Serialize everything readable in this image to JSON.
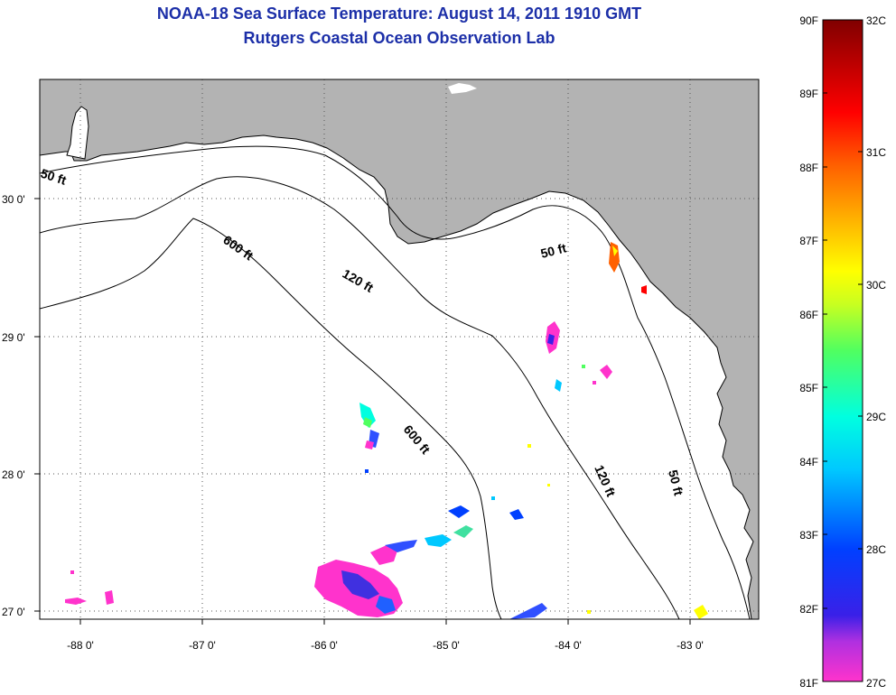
{
  "header": {
    "title": "NOAA-18 Sea Surface Temperature:  August 14, 2011 1910 GMT",
    "subtitle": "Rutgers Coastal Ocean Observation Lab"
  },
  "map": {
    "lon_range": [
      -88.33,
      -82.45
    ],
    "lat_range": [
      26.95,
      30.86
    ],
    "lon_ticks": [
      "-88 0'",
      "-87 0'",
      "-86 0'",
      "-85 0'",
      "-84 0'",
      "-83 0'"
    ],
    "lat_ticks": [
      "27 0'",
      "28 0'",
      "29 0'",
      "30 0'"
    ],
    "land_color": "#b3b3b3",
    "grid": "dotted",
    "contour_labels": {
      "c50_west": "50 ft",
      "c50_east": "50 ft",
      "c50_south": "50 ft",
      "c120_north": "120 ft",
      "c120_south": "120 ft",
      "c600_north": "600 ft",
      "c600_south": "600 ft"
    }
  },
  "colorbar": {
    "fahrenheit_labels": [
      "90F",
      "89F",
      "88F",
      "87F",
      "86F",
      "85F",
      "84F",
      "83F",
      "82F",
      "81F"
    ],
    "celsius_labels": [
      "32C",
      "31C",
      "30C",
      "29C",
      "28C",
      "27C"
    ]
  }
}
